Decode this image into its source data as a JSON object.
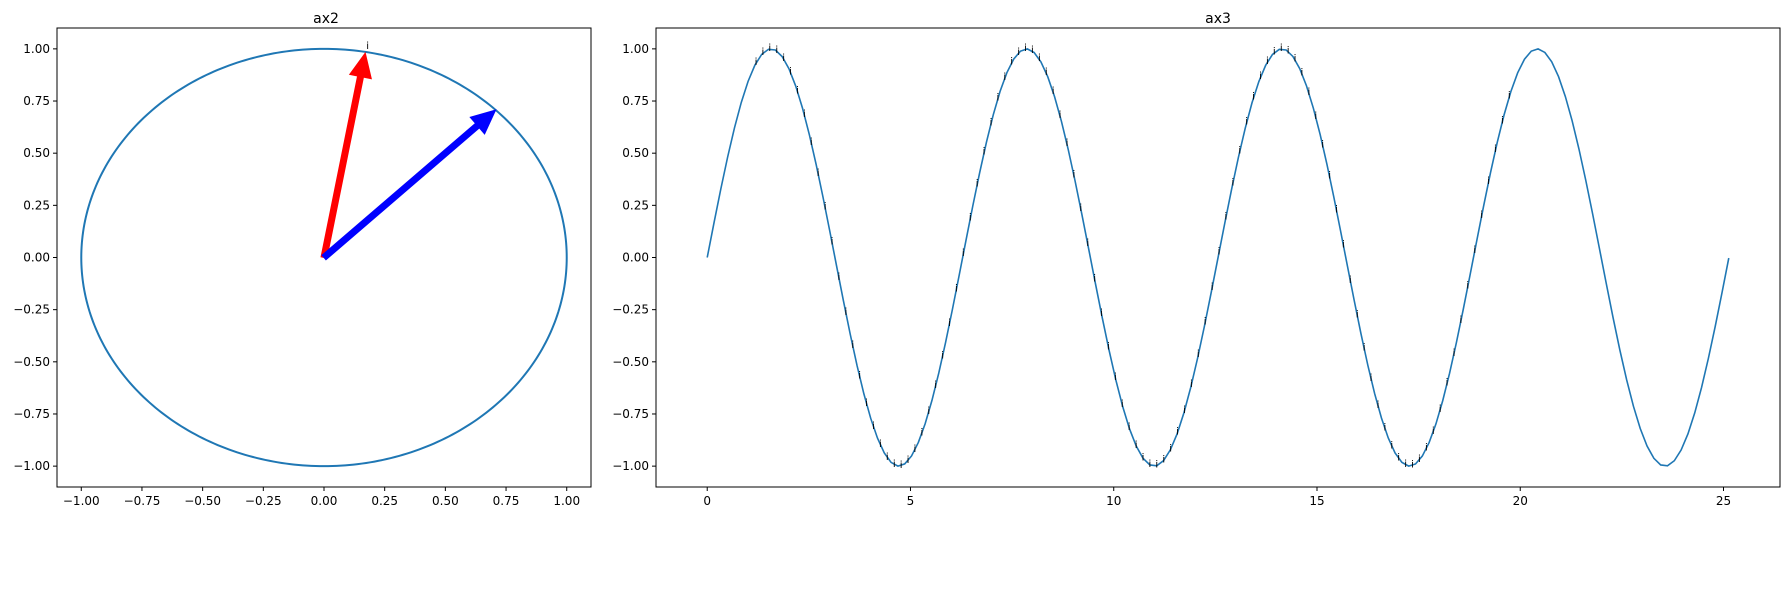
{
  "chart_data": [
    {
      "type": "line",
      "title": "ax2",
      "xlabel": "",
      "ylabel": "",
      "xlim": [
        -1.1,
        1.1
      ],
      "ylim": [
        -1.1,
        1.1
      ],
      "xticks": [
        -1.0,
        -0.75,
        -0.5,
        -0.25,
        0.0,
        0.25,
        0.5,
        0.75,
        1.0
      ],
      "yticks": [
        -1.0,
        -0.75,
        -0.5,
        -0.25,
        0.0,
        0.25,
        0.5,
        0.75,
        1.0
      ],
      "xtick_labels": [
        "−1.00",
        "−0.75",
        "−0.50",
        "−0.25",
        "0.00",
        "0.25",
        "0.50",
        "0.75",
        "1.00"
      ],
      "ytick_labels": [
        "−1.00",
        "−0.75",
        "−0.50",
        "−0.25",
        "0.00",
        "0.25",
        "0.50",
        "0.75",
        "1.00"
      ],
      "grid": false,
      "series": [
        {
          "kind": "unit-circle",
          "center": [
            0,
            0
          ],
          "radius": 1.0,
          "color": "#1f77b4"
        }
      ],
      "arrows": [
        {
          "from": [
            0,
            0
          ],
          "to": [
            0.17,
            0.98
          ],
          "color": "#ff0000"
        },
        {
          "from": [
            0,
            0
          ],
          "to": [
            0.707,
            0.707
          ],
          "color": "#0000ff"
        }
      ],
      "annotations": [
        {
          "text": "i",
          "x": 0.18,
          "y": 1.0
        }
      ]
    },
    {
      "type": "line",
      "title": "ax3",
      "xlabel": "",
      "ylabel": "",
      "xlim": [
        -1.26,
        26.39
      ],
      "ylim": [
        -1.1,
        1.1
      ],
      "xticks": [
        0,
        5,
        10,
        15,
        20,
        25
      ],
      "yticks": [
        -1.0,
        -0.75,
        -0.5,
        -0.25,
        0.0,
        0.25,
        0.5,
        0.75,
        1.0
      ],
      "xtick_labels": [
        "0",
        "5",
        "10",
        "15",
        "20",
        "25"
      ],
      "ytick_labels": [
        "−1.00",
        "−0.75",
        "−0.50",
        "−0.25",
        "0.00",
        "0.25",
        "0.50",
        "0.75",
        "1.00"
      ],
      "grid": false,
      "series": [
        {
          "kind": "sine",
          "x_range": [
            0,
            25.13
          ],
          "color": "#1f77b4"
        }
      ],
      "point_labels": {
        "text": "i",
        "x_start": 1.2,
        "x_end": 19.8,
        "x_step": 0.17
      }
    }
  ],
  "colors": {
    "line": "#1f77b4",
    "arrow_red": "#ff0000",
    "arrow_blue": "#0000ff"
  }
}
